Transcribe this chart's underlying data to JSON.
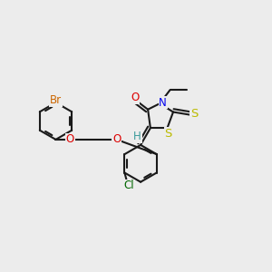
{
  "bg_color": "#ececec",
  "bond_color": "#1a1a1a",
  "bond_lw": 1.5,
  "dbo": 0.07,
  "hex_r": 0.68,
  "colors": {
    "Br": "#cc6600",
    "O": "#dd0000",
    "N": "#0000ee",
    "S": "#bbbb00",
    "Cl": "#006600",
    "H": "#3a9a9a",
    "C": "#1a1a1a"
  },
  "fs": 8.5
}
